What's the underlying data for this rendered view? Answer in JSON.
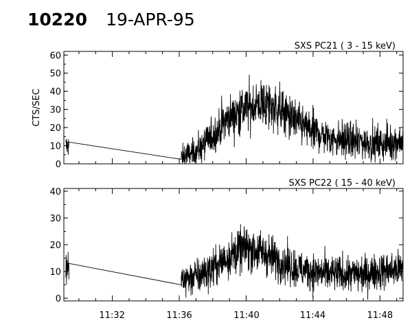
{
  "header": {
    "event_id": "10220",
    "date": "19-APR-95"
  },
  "chart_data": [
    {
      "type": "line",
      "title": "SXS PC21  (  3 - 15 keV)",
      "ylabel": "CTS/SEC",
      "xlabel": "",
      "x_unit": "minutes (clock time)",
      "x_range": [
        "11:29:07",
        "11:49:24"
      ],
      "xlim": [
        11.485,
        11.823
      ],
      "ylim": [
        0,
        62
      ],
      "yticks": [
        0,
        10,
        20,
        30,
        40,
        50,
        60
      ],
      "xticks": [],
      "grid": false,
      "segments": [
        {
          "x": [
            11.487,
            11.49
          ],
          "y_mean": 10,
          "noise": 3
        },
        {
          "x": [
            11.49,
            11.602
          ],
          "y_linear": [
            12,
            2.5
          ]
        },
        {
          "x": [
            11.602,
            11.823
          ],
          "y_shape": [
            [
              11.602,
              3
            ],
            [
              11.617,
              7
            ],
            [
              11.633,
              15
            ],
            [
              11.65,
              26
            ],
            [
              11.667,
              31
            ],
            [
              11.683,
              33
            ],
            [
              11.7,
              30
            ],
            [
              11.717,
              23
            ],
            [
              11.733,
              18
            ],
            [
              11.75,
              14
            ],
            [
              11.767,
              13
            ],
            [
              11.783,
              12
            ],
            [
              11.8,
              11
            ],
            [
              11.823,
              13
            ]
          ],
          "noise": 6
        }
      ]
    },
    {
      "type": "line",
      "title": "SXS PC22  ( 15 - 40 keV)",
      "ylabel": "",
      "xlabel": "",
      "x_range": [
        "11:29:07",
        "11:49:24"
      ],
      "xlim": [
        11.485,
        11.823
      ],
      "ylim": [
        -1,
        41
      ],
      "yticks": [
        0,
        10,
        20,
        30,
        40
      ],
      "xticks": [
        "11:32",
        "11:36",
        "11:40",
        "11:44",
        "11:48"
      ],
      "xtick_values": [
        11.533,
        11.6,
        11.667,
        11.733,
        11.8
      ],
      "grid": false,
      "segments": [
        {
          "x": [
            11.487,
            11.49
          ],
          "y_mean": 11,
          "noise": 3
        },
        {
          "x": [
            11.49,
            11.602
          ],
          "y_linear": [
            13,
            5
          ]
        },
        {
          "x": [
            11.602,
            11.823
          ],
          "y_shape": [
            [
              11.602,
              7
            ],
            [
              11.617,
              8
            ],
            [
              11.633,
              11
            ],
            [
              11.65,
              16
            ],
            [
              11.667,
              19
            ],
            [
              11.683,
              17
            ],
            [
              11.7,
              14
            ],
            [
              11.717,
              11
            ],
            [
              11.733,
              10
            ],
            [
              11.75,
              9
            ],
            [
              11.767,
              9
            ],
            [
              11.783,
              9
            ],
            [
              11.8,
              10
            ],
            [
              11.823,
              11
            ]
          ],
          "noise": 4.5
        }
      ]
    }
  ]
}
